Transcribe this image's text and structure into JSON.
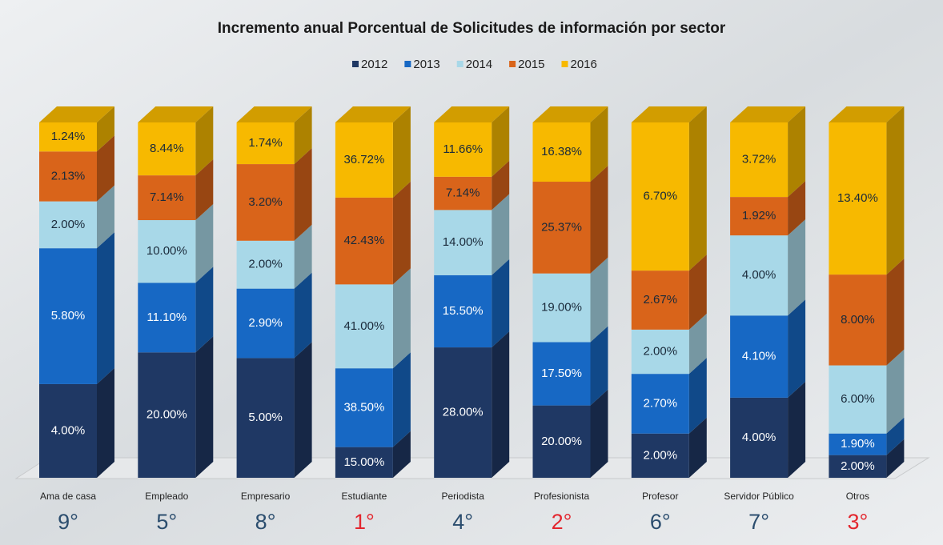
{
  "chart_data": {
    "type": "bar",
    "stacking": "percent",
    "title": "Incremento anual Porcentual de Solicitudes de información por sector",
    "categories": [
      "Ama de casa",
      "Empleado",
      "Empresario",
      "Estudiante",
      "Periodista",
      "Profesionista",
      "Profesor",
      "Servidor Público",
      "Otros"
    ],
    "ranks": [
      "9°",
      "5°",
      "8°",
      "1°",
      "4°",
      "2°",
      "6°",
      "7°",
      "3°"
    ],
    "rank_colors": [
      "#2b4d6e",
      "#2b4d6e",
      "#2b4d6e",
      "#e3262e",
      "#2b4d6e",
      "#e3262e",
      "#2b4d6e",
      "#2b4d6e",
      "#e3262e"
    ],
    "series": [
      {
        "name": "2012",
        "color": "#1f3864",
        "label_color": "#ffffff",
        "values": [
          4,
          20,
          5,
          15,
          28,
          20,
          2,
          4,
          2
        ],
        "value_labels": [
          "4.00%",
          "20.00%",
          "5.00%",
          "15.00%",
          "28.00%",
          "20.00%",
          "2.00%",
          "4.00%",
          "2.00%"
        ]
      },
      {
        "name": "2013",
        "color": "#1768c4",
        "label_color": "#ffffff",
        "values": [
          5.8,
          11.1,
          2.9,
          38.5,
          15.5,
          17.5,
          2.7,
          4.1,
          1.9
        ],
        "value_labels": [
          "5.80%",
          "11.10%",
          "2.90%",
          "38.50%",
          "15.50%",
          "17.50%",
          "2.70%",
          "4.10%",
          "1.90%"
        ]
      },
      {
        "name": "2014",
        "color": "#a8d8e8",
        "label_color": "#1a2a3a",
        "values": [
          2,
          10,
          2,
          41,
          14,
          19,
          2,
          4,
          6
        ],
        "value_labels": [
          "2.00%",
          "10.00%",
          "2.00%",
          "41.00%",
          "14.00%",
          "19.00%",
          "2.00%",
          "4.00%",
          "6.00%"
        ]
      },
      {
        "name": "2015",
        "color": "#d9641a",
        "label_color": "#1a2a3a",
        "values": [
          2.13,
          7.14,
          3.2,
          42.43,
          7.14,
          25.37,
          2.67,
          1.92,
          8
        ],
        "value_labels": [
          "2.13%",
          "7.14%",
          "3.20%",
          "42.43%",
          "7.14%",
          "25.37%",
          "2.67%",
          "1.92%",
          "8.00%"
        ]
      },
      {
        "name": "2016",
        "color": "#f7b900",
        "label_color": "#1a2a3a",
        "values": [
          1.24,
          8.44,
          1.74,
          36.72,
          11.66,
          16.38,
          6.7,
          3.72,
          13.4
        ],
        "value_labels": [
          "1.24%",
          "8.44%",
          "1.74%",
          "36.72%",
          "11.66%",
          "16.38%",
          "6.70%",
          "3.72%",
          "13.40%"
        ]
      }
    ]
  }
}
